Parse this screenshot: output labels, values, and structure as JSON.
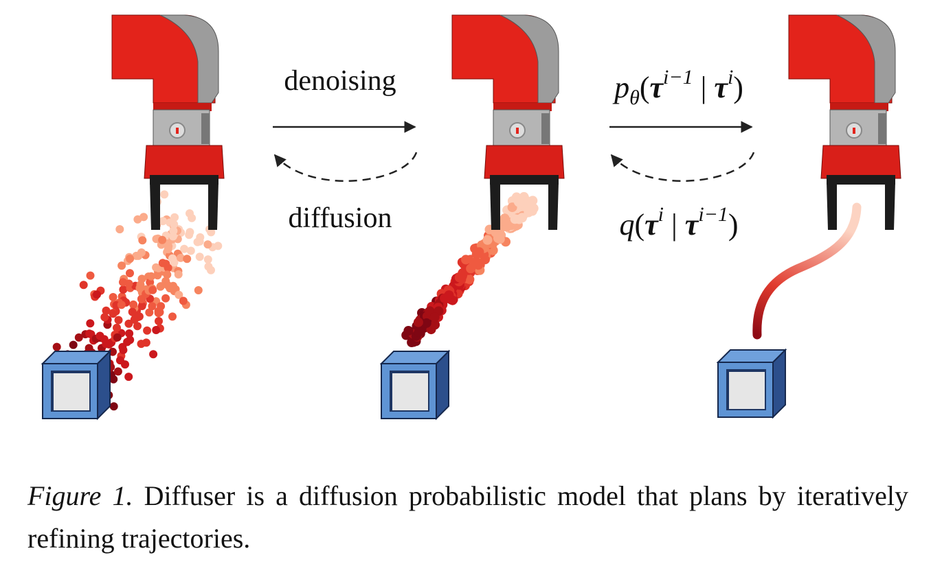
{
  "figure": {
    "labels": {
      "forward": "denoising",
      "reverse": "diffusion"
    },
    "equations": {
      "reverse_process": [
        {
          "text": "p",
          "style": "italic"
        },
        {
          "text": "θ",
          "style": "sub"
        },
        {
          "text": "(",
          "style": "normal"
        },
        {
          "text": "τ",
          "style": "bold"
        },
        {
          "text": "i−1",
          "style": "sup"
        },
        {
          "text": " | ",
          "style": "normal"
        },
        {
          "text": "τ",
          "style": "bold"
        },
        {
          "text": "i",
          "style": "sup"
        },
        {
          "text": ")",
          "style": "normal"
        }
      ],
      "forward_process": [
        {
          "text": "q",
          "style": "italic"
        },
        {
          "text": "(",
          "style": "normal"
        },
        {
          "text": "τ",
          "style": "bold"
        },
        {
          "text": "i",
          "style": "sup"
        },
        {
          "text": " | ",
          "style": "normal"
        },
        {
          "text": "τ",
          "style": "bold"
        },
        {
          "text": "i−1",
          "style": "sup"
        },
        {
          "text": ")",
          "style": "normal"
        }
      ]
    }
  },
  "caption": {
    "label": "Figure 1.",
    "text": "Diffuser is a diffusion probabilistic model that plans by iteratively refining trajectories."
  }
}
